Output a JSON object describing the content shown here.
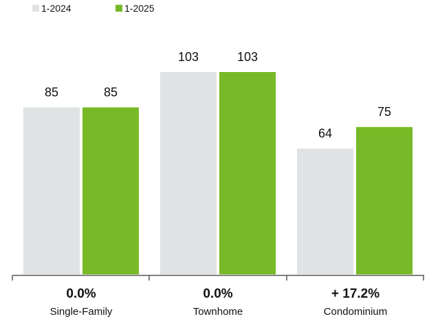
{
  "chart_data": {
    "type": "bar",
    "categories": [
      "Single-Family",
      "Townhome",
      "Condominium"
    ],
    "series": [
      {
        "name": "1-2024",
        "values": [
          85,
          103,
          64
        ],
        "color": "#dfe3e3"
      },
      {
        "name": "1-2025",
        "values": [
          85,
          103,
          75
        ],
        "color": "#78b927"
      }
    ],
    "change_labels": [
      "0.0%",
      "0.0%",
      "+ 17.2%"
    ],
    "ylim": [
      0,
      103
    ],
    "grid": false,
    "legend": "top-left",
    "title": "",
    "xlabel": "",
    "ylabel": ""
  },
  "colors": {
    "axis": "#555555",
    "text": "#111111"
  }
}
